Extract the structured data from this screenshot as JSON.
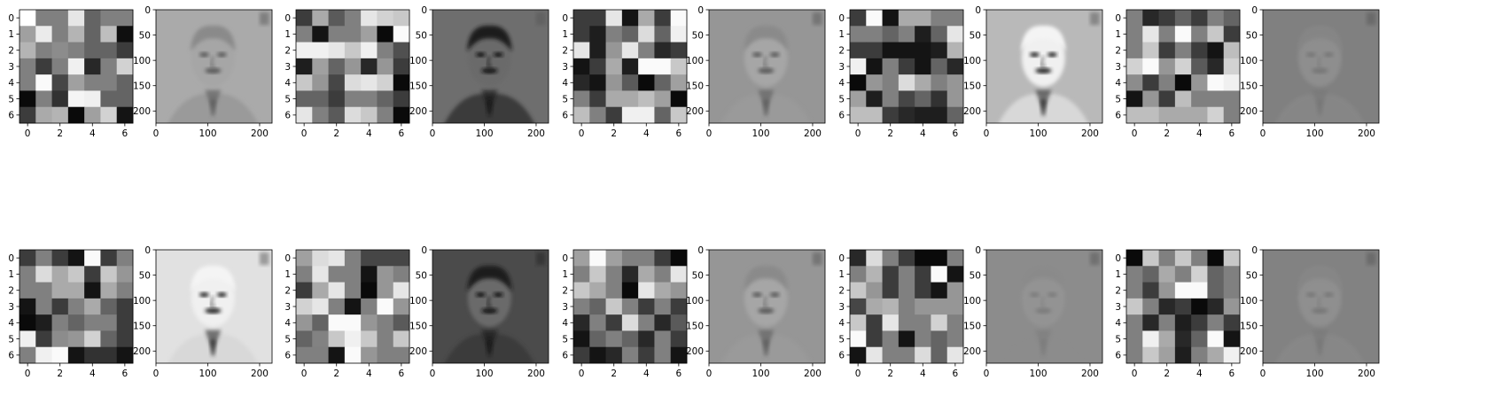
{
  "figure": {
    "rows": 2,
    "cols": 10,
    "panel_pairs_per_row": 5
  },
  "chart_data": [
    {
      "type": "heatmap",
      "row": 0,
      "pair": 0,
      "panel": "filter",
      "xlim": [
        -0.5,
        6.5
      ],
      "ylim": [
        6.5,
        -0.5
      ],
      "xticks": [
        0,
        2,
        4,
        6
      ],
      "yticks": [
        0,
        1,
        2,
        3,
        4,
        5,
        6
      ],
      "cmap": "gray",
      "values": [
        [
          255,
          128,
          128,
          230,
          100,
          128,
          128
        ],
        [
          160,
          235,
          128,
          180,
          100,
          190,
          15
        ],
        [
          180,
          128,
          140,
          128,
          100,
          100,
          60
        ],
        [
          128,
          60,
          128,
          240,
          40,
          128,
          210
        ],
        [
          128,
          250,
          70,
          160,
          128,
          128,
          100
        ],
        [
          10,
          128,
          50,
          245,
          240,
          100,
          100
        ],
        [
          60,
          170,
          180,
          10,
          160,
          210,
          20
        ]
      ]
    },
    {
      "type": "image",
      "row": 0,
      "pair": 0,
      "panel": "feature-map",
      "xlim": [
        0,
        224
      ],
      "ylim": [
        224,
        0
      ],
      "xticks": [
        0,
        100,
        200
      ],
      "yticks": [
        0,
        50,
        100,
        150,
        200
      ],
      "style": "edge",
      "background_gray": 170
    },
    {
      "type": "heatmap",
      "row": 0,
      "pair": 1,
      "panel": "filter",
      "xlim": [
        -0.5,
        6.5
      ],
      "ylim": [
        6.5,
        -0.5
      ],
      "xticks": [
        0,
        2,
        4,
        6
      ],
      "yticks": [
        0,
        1,
        2,
        3,
        4,
        5,
        6
      ],
      "cmap": "gray",
      "values": [
        [
          60,
          170,
          90,
          128,
          230,
          210,
          200
        ],
        [
          128,
          20,
          128,
          128,
          160,
          10,
          250
        ],
        [
          240,
          240,
          230,
          200,
          240,
          128,
          80
        ],
        [
          30,
          160,
          100,
          150,
          40,
          150,
          60
        ],
        [
          200,
          150,
          70,
          220,
          230,
          210,
          10
        ],
        [
          100,
          100,
          60,
          128,
          128,
          100,
          60
        ],
        [
          230,
          128,
          90,
          220,
          200,
          128,
          10
        ]
      ]
    },
    {
      "type": "image",
      "row": 0,
      "pair": 1,
      "panel": "feature-map",
      "xlim": [
        0,
        224
      ],
      "ylim": [
        224,
        0
      ],
      "xticks": [
        0,
        100,
        200
      ],
      "yticks": [
        0,
        50,
        100,
        150,
        200
      ],
      "style": "dark-photo",
      "background_gray": 110
    },
    {
      "type": "heatmap",
      "row": 0,
      "pair": 2,
      "panel": "filter",
      "xlim": [
        -0.5,
        6.5
      ],
      "ylim": [
        6.5,
        -0.5
      ],
      "xticks": [
        0,
        2,
        4,
        6
      ],
      "yticks": [
        0,
        1,
        2,
        3,
        4,
        5,
        6
      ],
      "cmap": "gray",
      "values": [
        [
          60,
          60,
          230,
          20,
          170,
          60,
          250
        ],
        [
          60,
          30,
          128,
          100,
          220,
          100,
          240
        ],
        [
          230,
          30,
          150,
          230,
          128,
          40,
          60
        ],
        [
          20,
          60,
          170,
          30,
          250,
          250,
          200
        ],
        [
          40,
          20,
          150,
          90,
          10,
          100,
          160
        ],
        [
          128,
          60,
          170,
          170,
          190,
          160,
          10
        ],
        [
          190,
          128,
          60,
          240,
          240,
          100,
          200
        ]
      ]
    },
    {
      "type": "image",
      "row": 0,
      "pair": 2,
      "panel": "feature-map",
      "xlim": [
        0,
        224
      ],
      "ylim": [
        224,
        0
      ],
      "xticks": [
        0,
        100,
        200
      ],
      "yticks": [
        0,
        50,
        100,
        150,
        200
      ],
      "style": "edge",
      "background_gray": 150
    },
    {
      "type": "heatmap",
      "row": 0,
      "pair": 3,
      "panel": "filter",
      "xlim": [
        -0.5,
        6.5
      ],
      "ylim": [
        6.5,
        -0.5
      ],
      "xticks": [
        0,
        2,
        4,
        6
      ],
      "yticks": [
        0,
        1,
        2,
        3,
        4,
        5,
        6
      ],
      "cmap": "gray",
      "values": [
        [
          60,
          250,
          20,
          170,
          170,
          128,
          128
        ],
        [
          128,
          128,
          100,
          128,
          30,
          100,
          230
        ],
        [
          60,
          60,
          20,
          20,
          20,
          30,
          180
        ],
        [
          240,
          20,
          128,
          60,
          20,
          100,
          40
        ],
        [
          10,
          150,
          128,
          220,
          170,
          128,
          150
        ],
        [
          160,
          30,
          128,
          70,
          100,
          50,
          150
        ],
        [
          190,
          190,
          60,
          40,
          30,
          30,
          100
        ]
      ]
    },
    {
      "type": "image",
      "row": 0,
      "pair": 3,
      "panel": "feature-map",
      "xlim": [
        0,
        224
      ],
      "ylim": [
        224,
        0
      ],
      "xticks": [
        0,
        100,
        200
      ],
      "yticks": [
        0,
        50,
        100,
        150,
        200
      ],
      "style": "inverted",
      "background_gray": 185
    },
    {
      "type": "heatmap",
      "row": 0,
      "pair": 4,
      "panel": "filter",
      "xlim": [
        -0.5,
        6.5
      ],
      "ylim": [
        6.5,
        -0.5
      ],
      "xticks": [
        0,
        2,
        4,
        6
      ],
      "yticks": [
        0,
        1,
        2,
        3,
        4,
        5,
        6
      ],
      "cmap": "gray",
      "values": [
        [
          128,
          40,
          60,
          100,
          60,
          128,
          100
        ],
        [
          128,
          230,
          128,
          250,
          128,
          200,
          60
        ],
        [
          128,
          200,
          60,
          128,
          60,
          20,
          190
        ],
        [
          210,
          250,
          150,
          210,
          90,
          40,
          210
        ],
        [
          140,
          60,
          128,
          10,
          150,
          250,
          240
        ],
        [
          20,
          150,
          60,
          190,
          128,
          128,
          128
        ],
        [
          190,
          190,
          170,
          170,
          170,
          210,
          128
        ]
      ]
    },
    {
      "type": "image",
      "row": 0,
      "pair": 4,
      "panel": "feature-map",
      "xlim": [
        0,
        224
      ],
      "ylim": [
        224,
        0
      ],
      "xticks": [
        0,
        100,
        200
      ],
      "yticks": [
        0,
        50,
        100,
        150,
        200
      ],
      "style": "faint-edge",
      "background_gray": 128
    },
    {
      "type": "heatmap",
      "row": 1,
      "pair": 0,
      "panel": "filter",
      "xlim": [
        -0.5,
        6.5
      ],
      "ylim": [
        6.5,
        -0.5
      ],
      "xticks": [
        0,
        2,
        4,
        6
      ],
      "yticks": [
        0,
        1,
        2,
        3,
        4,
        5,
        6
      ],
      "cmap": "gray",
      "values": [
        [
          60,
          128,
          60,
          20,
          250,
          60,
          128
        ],
        [
          128,
          220,
          170,
          200,
          60,
          200,
          150
        ],
        [
          128,
          128,
          170,
          170,
          20,
          170,
          128
        ],
        [
          20,
          128,
          60,
          128,
          170,
          100,
          60
        ],
        [
          10,
          30,
          128,
          100,
          128,
          128,
          60
        ],
        [
          240,
          60,
          140,
          150,
          210,
          100,
          60
        ],
        [
          128,
          240,
          250,
          20,
          50,
          50,
          20
        ]
      ]
    },
    {
      "type": "image",
      "row": 1,
      "pair": 0,
      "panel": "feature-map",
      "xlim": [
        0,
        224
      ],
      "ylim": [
        224,
        0
      ],
      "xticks": [
        0,
        100,
        200
      ],
      "yticks": [
        0,
        50,
        100,
        150,
        200
      ],
      "style": "bright-inverted",
      "background_gray": 225
    },
    {
      "type": "heatmap",
      "row": 1,
      "pair": 1,
      "panel": "filter",
      "xlim": [
        -0.5,
        6.5
      ],
      "ylim": [
        6.5,
        -0.5
      ],
      "xticks": [
        0,
        2,
        4,
        6
      ],
      "yticks": [
        0,
        1,
        2,
        3,
        4,
        5,
        6
      ],
      "cmap": "gray",
      "values": [
        [
          160,
          220,
          230,
          128,
          70,
          70,
          70
        ],
        [
          128,
          230,
          128,
          128,
          20,
          150,
          128
        ],
        [
          60,
          170,
          230,
          128,
          10,
          150,
          230
        ],
        [
          210,
          230,
          128,
          20,
          128,
          250,
          150
        ],
        [
          150,
          100,
          250,
          250,
          150,
          128,
          90
        ],
        [
          100,
          130,
          200,
          240,
          200,
          128,
          200
        ],
        [
          128,
          128,
          20,
          250,
          150,
          128,
          128
        ]
      ]
    },
    {
      "type": "image",
      "row": 1,
      "pair": 1,
      "panel": "feature-map",
      "xlim": [
        0,
        224
      ],
      "ylim": [
        224,
        0
      ],
      "xticks": [
        0,
        100,
        200
      ],
      "yticks": [
        0,
        50,
        100,
        150,
        200
      ],
      "style": "photo",
      "background_gray": 75
    },
    {
      "type": "heatmap",
      "row": 1,
      "pair": 2,
      "panel": "filter",
      "xlim": [
        -0.5,
        6.5
      ],
      "ylim": [
        6.5,
        -0.5
      ],
      "xticks": [
        0,
        2,
        4,
        6
      ],
      "yticks": [
        0,
        1,
        2,
        3,
        4,
        5,
        6
      ],
      "cmap": "gray",
      "values": [
        [
          160,
          250,
          160,
          128,
          128,
          60,
          10
        ],
        [
          128,
          200,
          128,
          40,
          170,
          128,
          230
        ],
        [
          200,
          170,
          128,
          10,
          230,
          170,
          150
        ],
        [
          128,
          100,
          200,
          128,
          60,
          128,
          60
        ],
        [
          40,
          128,
          60,
          220,
          128,
          40,
          90
        ],
        [
          20,
          100,
          128,
          100,
          40,
          128,
          60
        ],
        [
          60,
          20,
          40,
          128,
          60,
          128,
          20
        ]
      ]
    },
    {
      "type": "image",
      "row": 1,
      "pair": 2,
      "panel": "feature-map",
      "xlim": [
        0,
        224
      ],
      "ylim": [
        224,
        0
      ],
      "xticks": [
        0,
        100,
        200
      ],
      "yticks": [
        0,
        50,
        100,
        150,
        200
      ],
      "style": "edge",
      "background_gray": 150
    },
    {
      "type": "heatmap",
      "row": 1,
      "pair": 3,
      "panel": "filter",
      "xlim": [
        -0.5,
        6.5
      ],
      "ylim": [
        6.5,
        -0.5
      ],
      "xticks": [
        0,
        2,
        4,
        6
      ],
      "yticks": [
        0,
        1,
        2,
        3,
        4,
        5,
        6
      ],
      "cmap": "gray",
      "values": [
        [
          40,
          220,
          128,
          60,
          10,
          10,
          128
        ],
        [
          128,
          180,
          60,
          128,
          60,
          250,
          20
        ],
        [
          200,
          150,
          60,
          128,
          60,
          20,
          150
        ],
        [
          70,
          170,
          180,
          128,
          150,
          150,
          150
        ],
        [
          200,
          60,
          230,
          128,
          128,
          210,
          128
        ],
        [
          250,
          60,
          128,
          20,
          128,
          100,
          128
        ],
        [
          20,
          230,
          128,
          128,
          220,
          100,
          230
        ]
      ]
    },
    {
      "type": "image",
      "row": 1,
      "pair": 3,
      "panel": "feature-map",
      "xlim": [
        0,
        224
      ],
      "ylim": [
        224,
        0
      ],
      "xticks": [
        0,
        100,
        200
      ],
      "yticks": [
        0,
        50,
        100,
        150,
        200
      ],
      "style": "faint-edge",
      "background_gray": 140
    },
    {
      "type": "heatmap",
      "row": 1,
      "pair": 4,
      "panel": "filter",
      "xlim": [
        -0.5,
        6.5
      ],
      "ylim": [
        6.5,
        -0.5
      ],
      "xticks": [
        0,
        2,
        4,
        6
      ],
      "yticks": [
        0,
        1,
        2,
        3,
        4,
        5,
        6
      ],
      "cmap": "gray",
      "values": [
        [
          10,
          200,
          128,
          200,
          128,
          10,
          200
        ],
        [
          128,
          100,
          170,
          128,
          210,
          100,
          128
        ],
        [
          128,
          60,
          150,
          250,
          250,
          100,
          128
        ],
        [
          200,
          128,
          40,
          60,
          10,
          40,
          150
        ],
        [
          128,
          40,
          128,
          30,
          60,
          128,
          60
        ],
        [
          128,
          240,
          170,
          40,
          100,
          250,
          20
        ],
        [
          128,
          200,
          160,
          30,
          128,
          170,
          240
        ]
      ]
    },
    {
      "type": "image",
      "row": 1,
      "pair": 4,
      "panel": "feature-map",
      "xlim": [
        0,
        224
      ],
      "ylim": [
        224,
        0
      ],
      "xticks": [
        0,
        100,
        200
      ],
      "yticks": [
        0,
        50,
        100,
        150,
        200
      ],
      "style": "faint-edge",
      "background_gray": 130
    }
  ]
}
